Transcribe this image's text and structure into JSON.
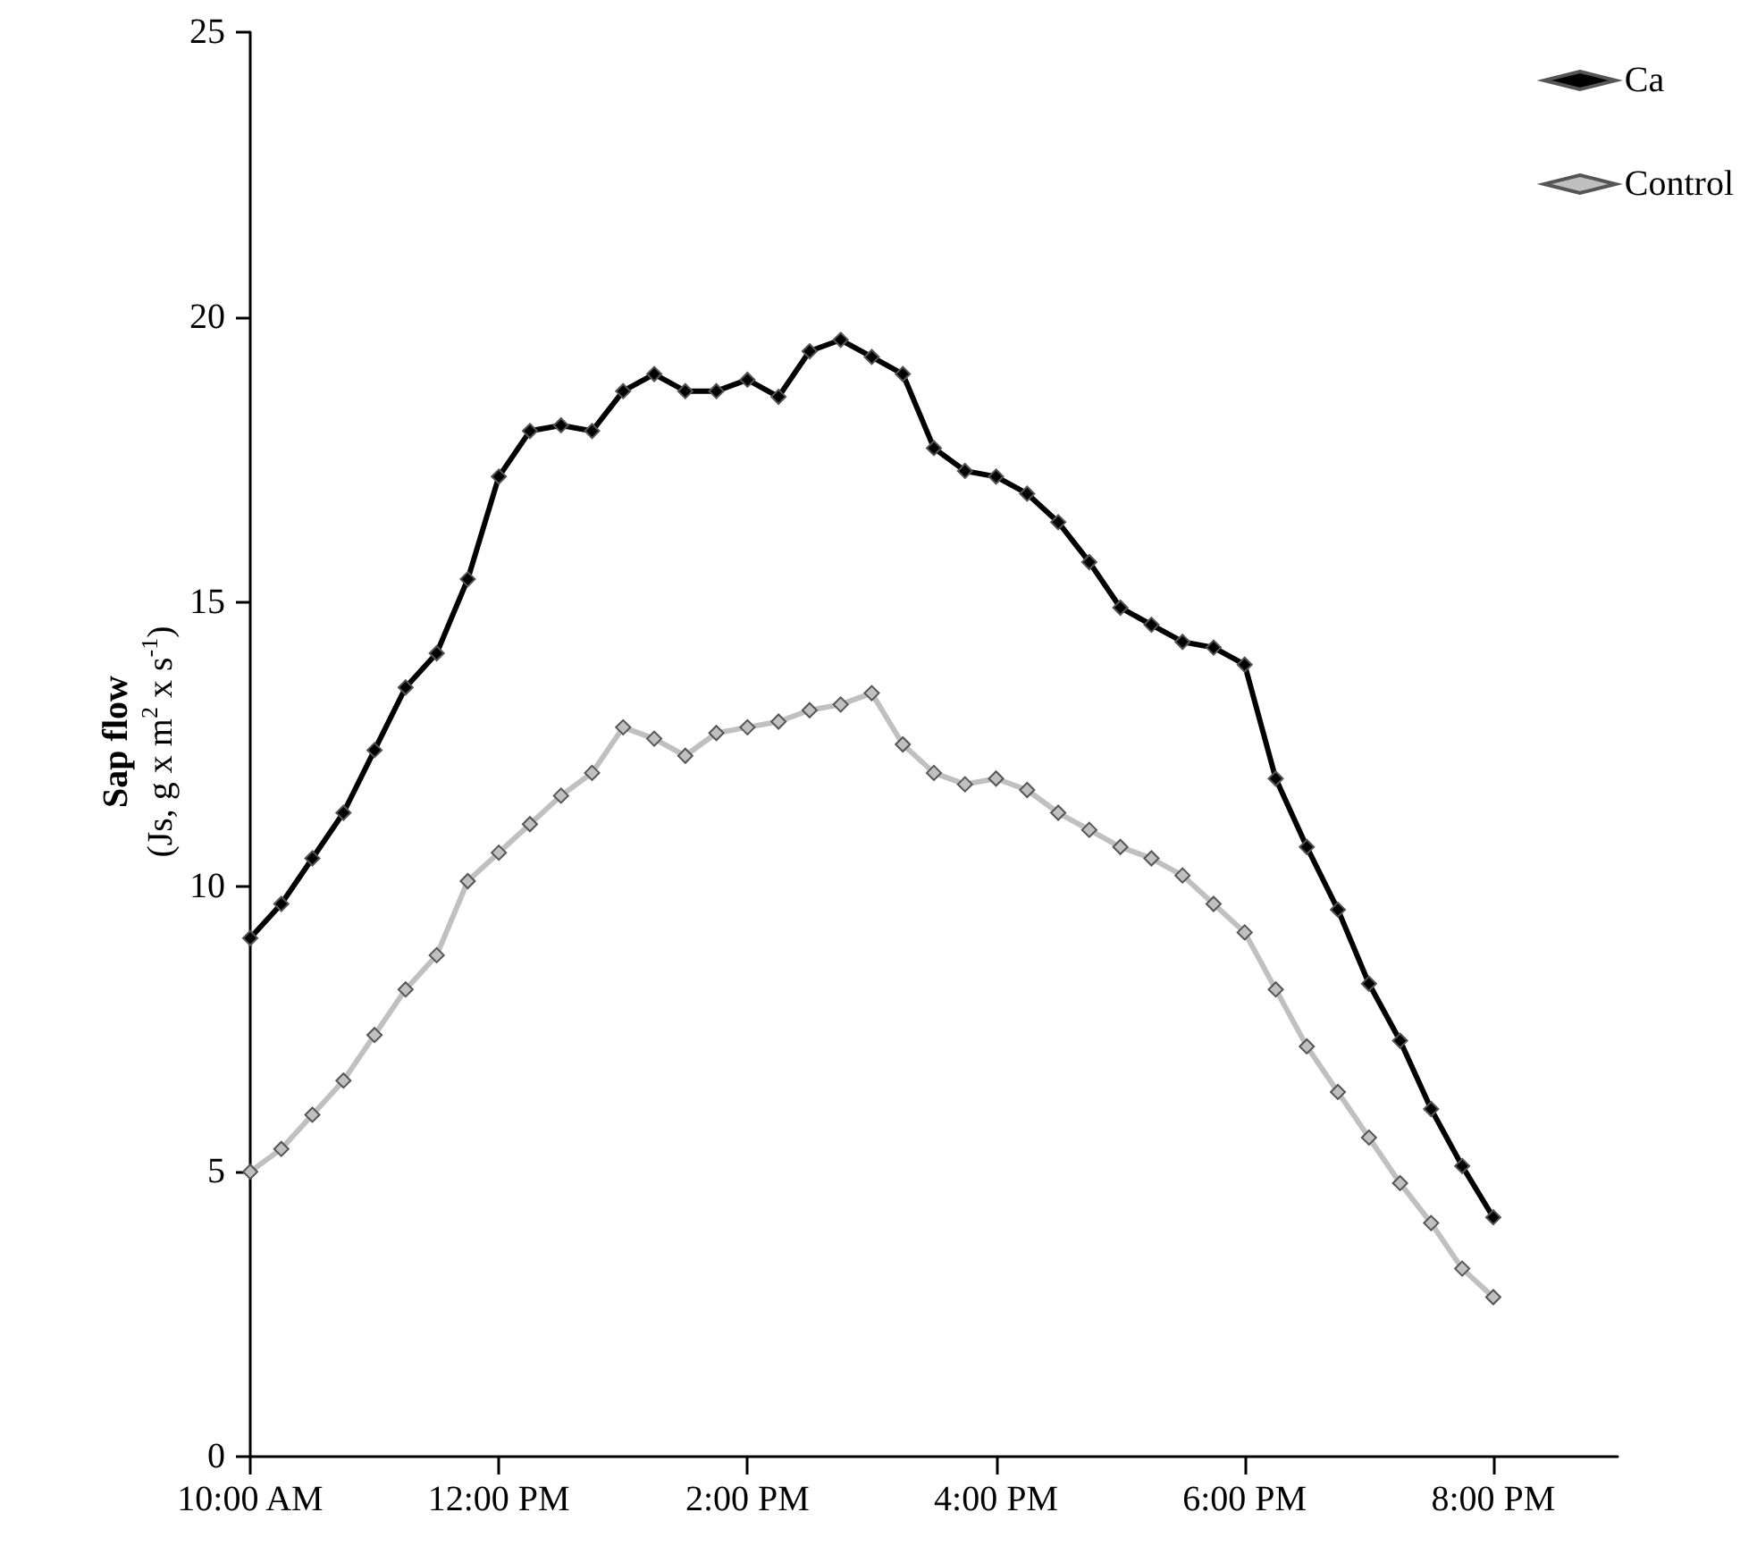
{
  "chart_data": {
    "type": "line",
    "ylabel": "Sap flow\n(Js, g x m$^{2}$ x s$^{-1}$)",
    "x": [
      10,
      10.25,
      10.5,
      10.75,
      11,
      11.25,
      11.5,
      11.75,
      12,
      12.25,
      12.5,
      12.75,
      13,
      13.25,
      13.5,
      13.75,
      14,
      14.25,
      14.5,
      14.75,
      15,
      15.25,
      15.5,
      15.75,
      16,
      16.25,
      16.5,
      16.75,
      17,
      17.25,
      17.5,
      17.75,
      18,
      18.25,
      18.5,
      18.75,
      19,
      19.25,
      19.5,
      19.75,
      20
    ],
    "series": [
      {
        "name": "Ca",
        "color": "#000000",
        "values": [
          9.1,
          9.7,
          10.5,
          11.3,
          12.4,
          13.5,
          14.1,
          15.4,
          17.2,
          18.0,
          18.1,
          18.0,
          18.7,
          19.0,
          18.7,
          18.7,
          18.9,
          18.6,
          19.4,
          19.6,
          19.3,
          19.0,
          17.7,
          17.3,
          17.2,
          16.9,
          16.4,
          15.7,
          14.9,
          14.6,
          14.3,
          14.2,
          13.9,
          11.9,
          10.7,
          9.6,
          8.3,
          7.3,
          6.1,
          5.1,
          4.2
        ]
      },
      {
        "name": "Control",
        "color": "#c0c0c0",
        "values": [
          5.0,
          5.4,
          6.0,
          6.6,
          7.4,
          8.2,
          8.8,
          10.1,
          10.6,
          11.1,
          11.6,
          12.0,
          12.8,
          12.6,
          12.3,
          12.7,
          12.8,
          12.9,
          13.1,
          13.2,
          13.4,
          12.5,
          12.0,
          11.8,
          11.9,
          11.7,
          11.3,
          11.0,
          10.7,
          10.5,
          10.2,
          9.7,
          9.2,
          8.2,
          7.2,
          6.4,
          5.6,
          4.8,
          4.1,
          3.3,
          2.8
        ]
      }
    ],
    "xlim": [
      10,
      21
    ],
    "xticks": [
      {
        "value": 10,
        "label": "10:00 AM"
      },
      {
        "value": 12,
        "label": "12:00 PM"
      },
      {
        "value": 14,
        "label": "2:00 PM"
      },
      {
        "value": 16,
        "label": "4:00 PM"
      },
      {
        "value": 18,
        "label": "6:00 PM"
      },
      {
        "value": 20,
        "label": "8:00 PM"
      }
    ],
    "ylim": [
      0,
      25
    ],
    "yticks": [
      0,
      5,
      10,
      15,
      20,
      25
    ],
    "grid": false,
    "legend": "top right",
    "marker": "diamond",
    "line_style": "solid"
  }
}
